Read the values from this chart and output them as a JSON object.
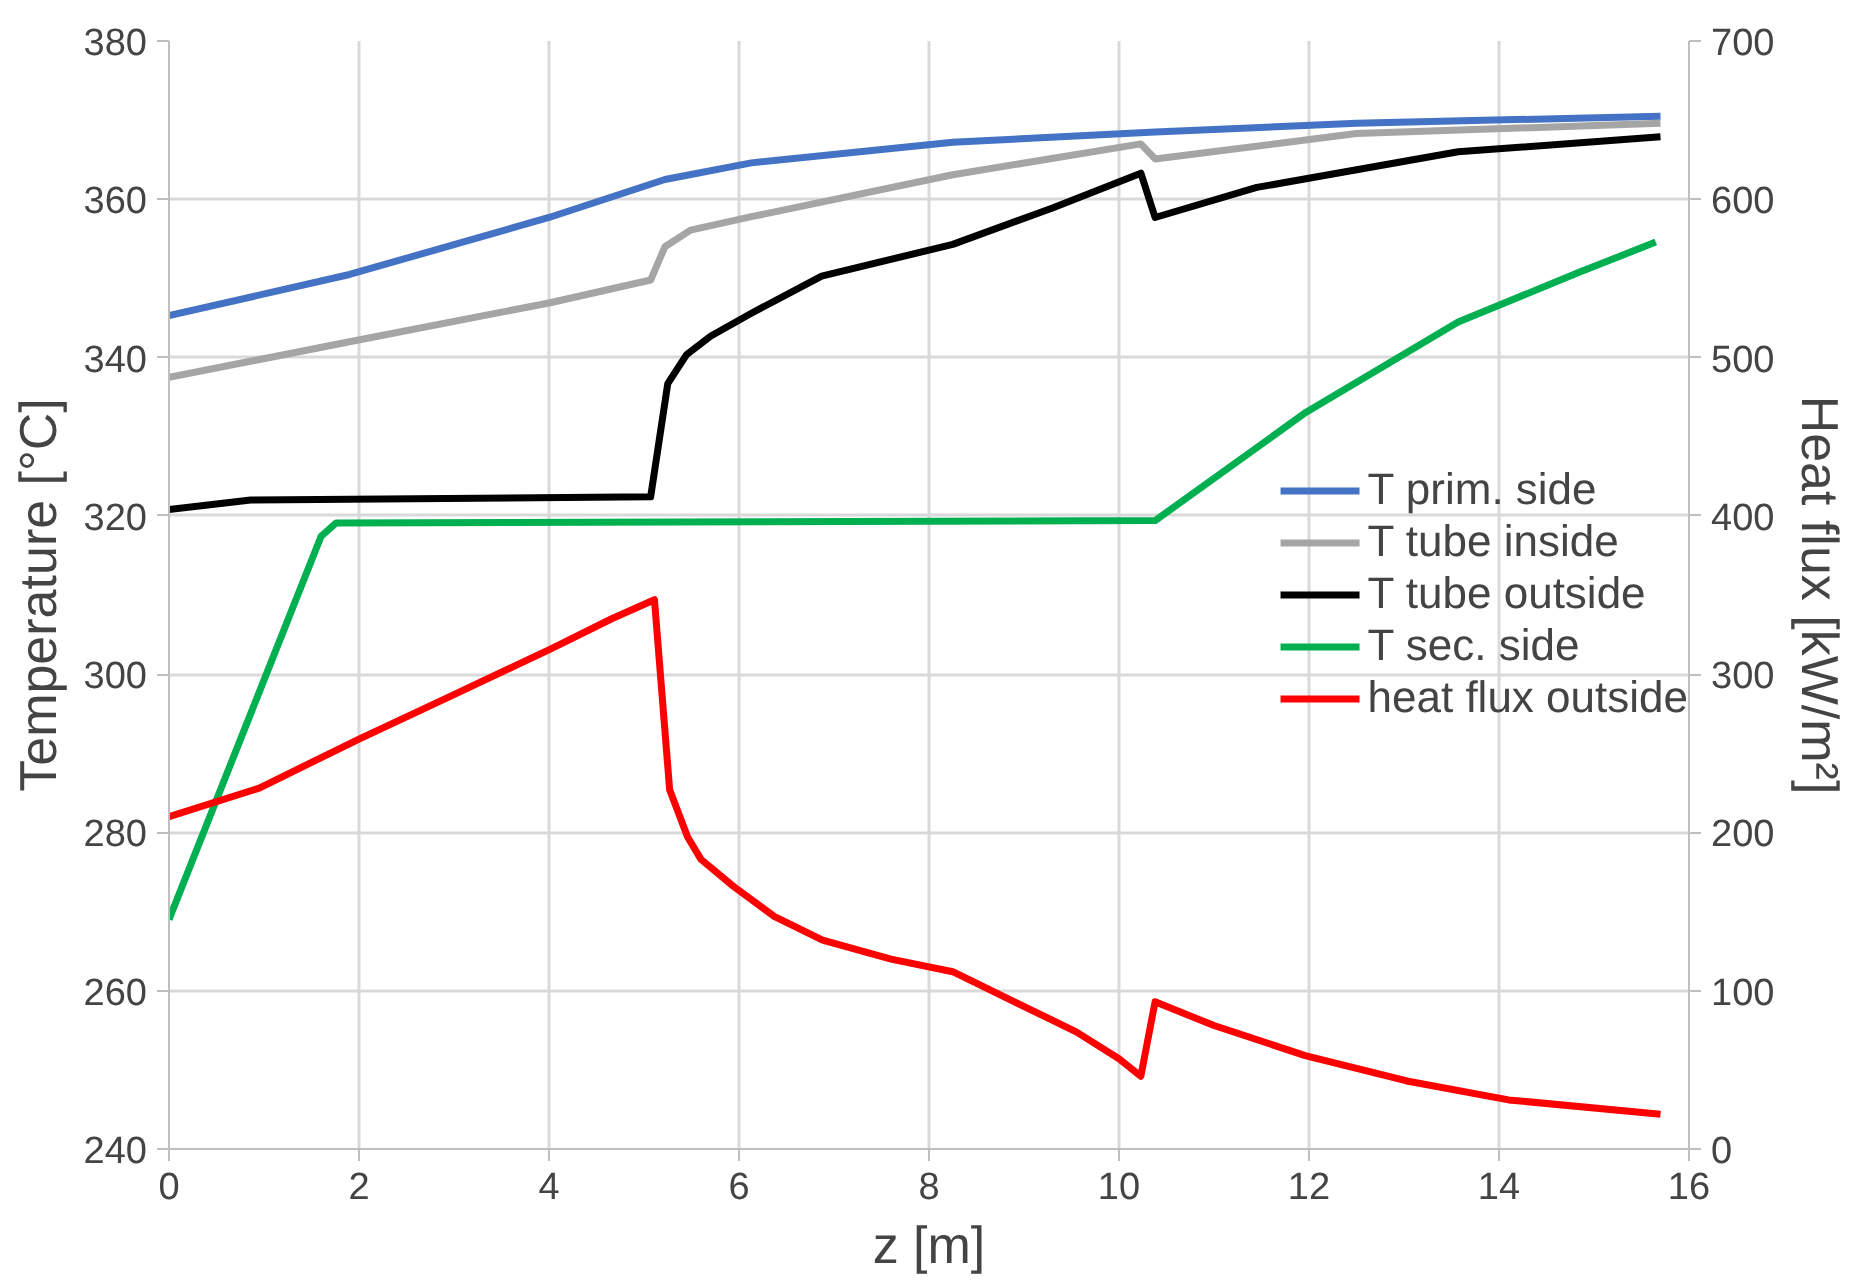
{
  "chart_data": {
    "type": "line",
    "xlabel": "z [m]",
    "ylabel": "Temperature [°C]",
    "y2label": "Heat flux [kW/m²]",
    "xlim": [
      0,
      16
    ],
    "xticks": [
      0,
      2,
      4,
      6,
      8,
      10,
      12,
      14,
      16
    ],
    "ylim": [
      240,
      380
    ],
    "yticks": [
      240,
      260,
      280,
      300,
      320,
      340,
      360,
      380
    ],
    "y2lim": [
      0,
      700
    ],
    "y2ticks": [
      0,
      100,
      200,
      300,
      400,
      500,
      600,
      700
    ],
    "grid": true,
    "legend": "right",
    "marker": "none",
    "line_style": "solid",
    "series": [
      {
        "name": "T prim. side",
        "color": "#4472c4",
        "x": [
          0,
          1.9,
          4.0,
          5.22,
          6.13,
          8.25,
          10.38,
          12.5,
          15.7
        ],
        "values": [
          345.3,
          350.5,
          357.7,
          362.5,
          364.6,
          367.2,
          368.5,
          369.6,
          370.5
        ]
      },
      {
        "name": "T tube inside",
        "color": "#a5a5a5",
        "x": [
          0,
          1.9,
          4.0,
          5.07,
          5.22,
          5.49,
          6.13,
          8.25,
          10.23,
          10.38,
          12.5,
          15.7
        ],
        "values": [
          337.5,
          342,
          346.9,
          349.8,
          354,
          356.1,
          357.8,
          363.1,
          367,
          365.1,
          368.3,
          369.6
        ]
      },
      {
        "name": "T tube outside",
        "color": "#000000",
        "x": [
          0,
          0.86,
          5.07,
          5.25,
          5.45,
          5.7,
          6.13,
          6.87,
          8.25,
          9.3,
          10.23,
          10.38,
          11.45,
          13.57,
          15.7
        ],
        "values": [
          320.8,
          322,
          322.4,
          336.7,
          340.4,
          342.7,
          345.6,
          350.3,
          354.3,
          358.9,
          363.3,
          357.7,
          361.5,
          366,
          367.9
        ]
      },
      {
        "name": "T sec. side",
        "color": "#00b050",
        "x": [
          0,
          1.6,
          1.76,
          10.38,
          11.97,
          13.57,
          14.85,
          15.65
        ],
        "values": [
          269,
          317.4,
          319.1,
          319.4,
          333.1,
          344.5,
          350.8,
          354.6
        ]
      },
      {
        "name": "heat flux outside",
        "color": "#ff0000",
        "axis": "y2",
        "x": [
          0,
          0.95,
          2.0,
          2.96,
          4.02,
          4.66,
          5.11,
          5.27,
          5.46,
          5.6,
          5.94,
          6.37,
          6.88,
          7.6,
          8.25,
          8.9,
          9.55,
          10.0,
          10.23,
          10.38,
          11.0,
          11.96,
          13.03,
          14.1,
          15.7
        ],
        "values": [
          210,
          228,
          259,
          286,
          316,
          335,
          347,
          227,
          197,
          183,
          166,
          147,
          132,
          120,
          112,
          93,
          74,
          57,
          46,
          93,
          78,
          59,
          43,
          31,
          22
        ]
      }
    ]
  }
}
